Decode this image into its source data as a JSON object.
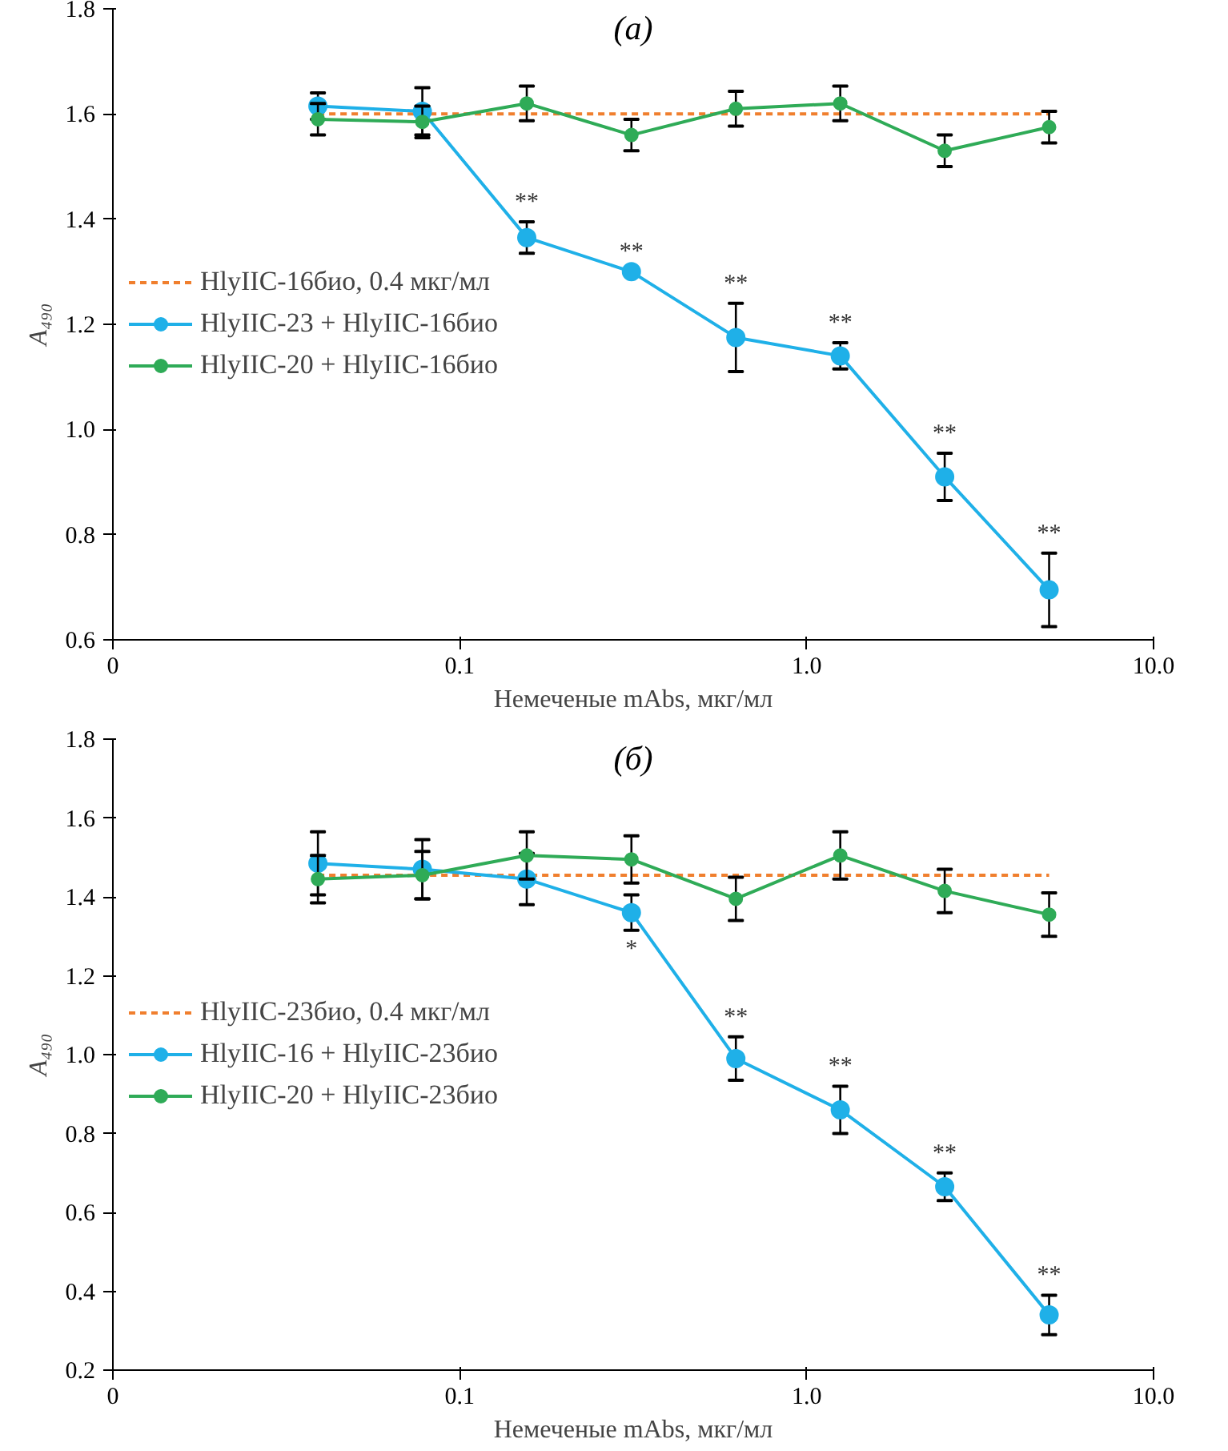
{
  "chart_data": [
    {
      "type": "line",
      "title": "(a)",
      "xlabel": "Немеченые mAbs, мкг/мл",
      "ylabel": "A₄₉₀",
      "log": "x",
      "xlim": [
        0.01,
        10
      ],
      "xticks": [
        {
          "value": 0.01,
          "label": "0"
        },
        0.1,
        {
          "value": 1,
          "label": "1.0"
        },
        {
          "value": 10,
          "label": "10.0"
        }
      ],
      "ylim": [
        0.6,
        1.8
      ],
      "yticks": [
        0.6,
        0.8,
        {
          "value": 1,
          "label": "1.0"
        },
        1.2,
        1.4,
        1.6,
        1.8
      ],
      "grid": false,
      "legend": "left",
      "x": [
        0.039,
        0.078,
        0.156,
        0.3125,
        0.625,
        1.25,
        2.5,
        5
      ],
      "series": [
        {
          "name": "HlyIIC-16био, 0.4 мкг/мл",
          "color": "#f07f2e",
          "line_style": "dashed",
          "marker": "none",
          "values": [
            1.6,
            1.6,
            1.6,
            1.6,
            1.6,
            1.6,
            1.6,
            1.6
          ]
        },
        {
          "name": "HlyIIC-23 + HlyIIC-16био",
          "color": "#1fb0e8",
          "marker": "circle",
          "values": [
            1.615,
            1.605,
            1.365,
            1.3,
            1.175,
            1.14,
            0.91,
            0.695
          ],
          "errors": [
            0.025,
            0.045,
            0.03,
            null,
            0.065,
            0.025,
            0.045,
            0.07
          ]
        },
        {
          "name": "HlyIIC-20 + HlyIIC-16био",
          "color": "#2fab57",
          "marker": "circle",
          "values": [
            1.59,
            1.585,
            1.62,
            1.56,
            1.61,
            1.62,
            1.53,
            1.575
          ],
          "errors": [
            0.03,
            0.03,
            0.033,
            0.03,
            0.033,
            0.033,
            0.03,
            0.03
          ]
        }
      ],
      "annotations": [
        {
          "text": "**",
          "x": 0.156,
          "y": 1.365
        },
        {
          "text": "**",
          "x": 0.3125,
          "y": 1.3
        },
        {
          "text": "**",
          "x": 0.625,
          "y": 1.175
        },
        {
          "text": "**",
          "x": 1.25,
          "y": 1.14
        },
        {
          "text": "**",
          "x": 2.5,
          "y": 0.91
        },
        {
          "text": "**",
          "x": 5,
          "y": 0.695
        }
      ]
    },
    {
      "type": "line",
      "title": "(б)",
      "xlabel": "Немеченые mAbs, мкг/мл",
      "ylabel": "A₄₉₀",
      "log": "x",
      "xlim": [
        0.01,
        10
      ],
      "xticks": [
        {
          "value": 0.01,
          "label": "0"
        },
        0.1,
        {
          "value": 1,
          "label": "1.0"
        },
        {
          "value": 10,
          "label": "10.0"
        }
      ],
      "ylim": [
        0.2,
        1.8
      ],
      "yticks": [
        0.2,
        0.4,
        0.6,
        0.8,
        {
          "value": 1,
          "label": "1.0"
        },
        1.2,
        1.4,
        1.6,
        1.8
      ],
      "grid": false,
      "legend": "left",
      "x": [
        0.039,
        0.078,
        0.156,
        0.3125,
        0.625,
        1.25,
        2.5,
        5
      ],
      "series": [
        {
          "name": "HlyIIC-23био, 0.4 мкг/мл",
          "color": "#f07f2e",
          "line_style": "dashed",
          "marker": "none",
          "values": [
            1.455,
            1.455,
            1.455,
            1.455,
            1.455,
            1.455,
            1.455,
            1.455
          ]
        },
        {
          "name": "HlyIIC-16 + HlyIIC-23био",
          "color": "#1fb0e8",
          "marker": "circle",
          "values": [
            1.485,
            1.47,
            1.445,
            1.36,
            0.99,
            0.86,
            0.665,
            0.34
          ],
          "errors": [
            0.08,
            0.075,
            0.065,
            0.045,
            0.055,
            0.06,
            0.035,
            0.05
          ]
        },
        {
          "name": "HlyIIC-20 + HlyIIC-23био",
          "color": "#2fab57",
          "marker": "circle",
          "values": [
            1.445,
            1.455,
            1.505,
            1.495,
            1.395,
            1.505,
            1.415,
            1.355
          ],
          "errors": [
            0.06,
            0.06,
            0.06,
            0.06,
            0.055,
            0.06,
            0.055,
            0.055
          ]
        }
      ],
      "annotations": [
        {
          "text": "*",
          "x": 0.3125,
          "y": 1.36
        },
        {
          "text": "**",
          "x": 0.625,
          "y": 0.99
        },
        {
          "text": "**",
          "x": 1.25,
          "y": 0.86
        },
        {
          "text": "**",
          "x": 2.5,
          "y": 0.665
        },
        {
          "text": "**",
          "x": 5,
          "y": 0.34
        }
      ]
    }
  ]
}
